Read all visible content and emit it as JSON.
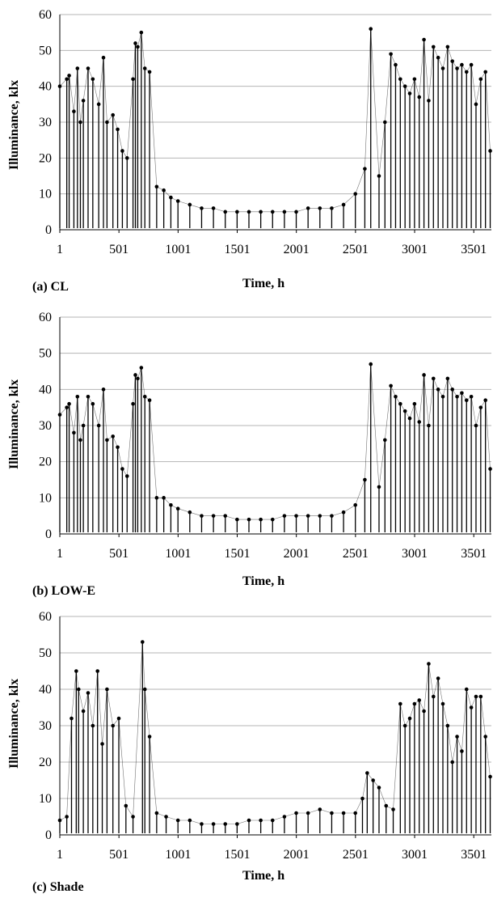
{
  "chart_data": [
    {
      "type": "line",
      "panel_label": "(a) CL",
      "xlabel": "Time, h",
      "ylabel": "Illuminance, klx",
      "ylim": [
        0,
        60
      ],
      "xlim": [
        1,
        3650
      ],
      "y_ticks": [
        0,
        10,
        20,
        30,
        40,
        50,
        60
      ],
      "x_ticks": [
        1,
        501,
        1001,
        1501,
        2001,
        2501,
        3001,
        3501
      ],
      "grid": "horizontal",
      "series_color": "#000000",
      "x": [
        1,
        60,
        80,
        120,
        150,
        175,
        200,
        240,
        280,
        330,
        370,
        400,
        450,
        490,
        530,
        570,
        620,
        640,
        660,
        690,
        720,
        760,
        820,
        880,
        940,
        1000,
        1100,
        1200,
        1300,
        1400,
        1500,
        1600,
        1700,
        1800,
        1900,
        2000,
        2100,
        2200,
        2300,
        2400,
        2500,
        2580,
        2630,
        2700,
        2750,
        2800,
        2840,
        2880,
        2920,
        2960,
        3000,
        3040,
        3080,
        3120,
        3160,
        3200,
        3240,
        3280,
        3320,
        3360,
        3400,
        3440,
        3480,
        3520,
        3560,
        3600,
        3640
      ],
      "values": [
        40,
        42,
        43,
        33,
        45,
        30,
        36,
        45,
        42,
        35,
        48,
        30,
        32,
        28,
        22,
        20,
        42,
        52,
        51,
        55,
        45,
        44,
        12,
        11,
        9,
        8,
        7,
        6,
        6,
        5,
        5,
        5,
        5,
        5,
        5,
        5,
        6,
        6,
        6,
        7,
        10,
        17,
        56,
        15,
        30,
        49,
        46,
        42,
        40,
        38,
        42,
        37,
        53,
        36,
        51,
        48,
        45,
        51,
        47,
        45,
        46,
        44,
        46,
        35,
        42,
        44,
        22
      ]
    },
    {
      "type": "line",
      "panel_label": "(b) LOW-E",
      "xlabel": "Time, h",
      "ylabel": "Illuminance, klx",
      "ylim": [
        0,
        60
      ],
      "xlim": [
        1,
        3650
      ],
      "y_ticks": [
        0,
        10,
        20,
        30,
        40,
        50,
        60
      ],
      "x_ticks": [
        1,
        501,
        1001,
        1501,
        2001,
        2501,
        3001,
        3501
      ],
      "grid": "horizontal",
      "series_color": "#000000",
      "x": [
        1,
        60,
        80,
        120,
        150,
        175,
        200,
        240,
        280,
        330,
        370,
        400,
        450,
        490,
        530,
        570,
        620,
        640,
        660,
        690,
        720,
        760,
        820,
        880,
        940,
        1000,
        1100,
        1200,
        1300,
        1400,
        1500,
        1600,
        1700,
        1800,
        1900,
        2000,
        2100,
        2200,
        2300,
        2400,
        2500,
        2580,
        2630,
        2700,
        2750,
        2800,
        2840,
        2880,
        2920,
        2960,
        3000,
        3040,
        3080,
        3120,
        3160,
        3200,
        3240,
        3280,
        3320,
        3360,
        3400,
        3440,
        3480,
        3520,
        3560,
        3600,
        3640
      ],
      "values": [
        33,
        35,
        36,
        28,
        38,
        26,
        30,
        38,
        36,
        30,
        40,
        26,
        27,
        24,
        18,
        16,
        36,
        44,
        43,
        46,
        38,
        37,
        10,
        10,
        8,
        7,
        6,
        5,
        5,
        5,
        4,
        4,
        4,
        4,
        5,
        5,
        5,
        5,
        5,
        6,
        8,
        15,
        47,
        13,
        26,
        41,
        38,
        36,
        34,
        32,
        36,
        31,
        44,
        30,
        43,
        40,
        38,
        43,
        40,
        38,
        39,
        37,
        38,
        30,
        35,
        37,
        18
      ]
    },
    {
      "type": "line",
      "panel_label": "(c) Shade",
      "xlabel": "Time, h",
      "ylabel": "Illuminance, klx",
      "ylim": [
        0,
        60
      ],
      "xlim": [
        1,
        3650
      ],
      "y_ticks": [
        0,
        10,
        20,
        30,
        40,
        50,
        60
      ],
      "x_ticks": [
        1,
        501,
        1001,
        1501,
        2001,
        2501,
        3001,
        3501
      ],
      "grid": "horizontal",
      "series_color": "#000000",
      "x": [
        1,
        60,
        100,
        140,
        160,
        200,
        240,
        280,
        320,
        360,
        400,
        450,
        500,
        560,
        620,
        700,
        720,
        760,
        820,
        900,
        1000,
        1100,
        1200,
        1300,
        1400,
        1500,
        1600,
        1700,
        1800,
        1900,
        2000,
        2100,
        2200,
        2300,
        2400,
        2500,
        2560,
        2600,
        2650,
        2700,
        2760,
        2820,
        2880,
        2920,
        2960,
        3000,
        3040,
        3080,
        3120,
        3160,
        3200,
        3240,
        3280,
        3320,
        3360,
        3400,
        3440,
        3480,
        3520,
        3560,
        3600,
        3640
      ],
      "values": [
        4,
        5,
        32,
        45,
        40,
        34,
        39,
        30,
        45,
        25,
        40,
        30,
        32,
        8,
        5,
        53,
        40,
        27,
        6,
        5,
        4,
        4,
        3,
        3,
        3,
        3,
        4,
        4,
        4,
        5,
        6,
        6,
        7,
        6,
        6,
        6,
        10,
        17,
        15,
        13,
        8,
        7,
        36,
        30,
        32,
        36,
        37,
        34,
        47,
        38,
        43,
        36,
        30,
        20,
        27,
        23,
        40,
        35,
        38,
        38,
        27,
        16
      ]
    }
  ]
}
